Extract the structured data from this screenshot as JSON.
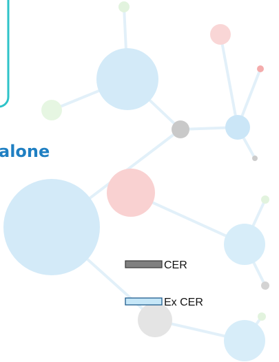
{
  "heading": "alone",
  "legend": [
    {
      "label": "CER",
      "color": "#808080"
    },
    {
      "label": "Ex CER",
      "color": "#c6e7f8"
    }
  ]
}
